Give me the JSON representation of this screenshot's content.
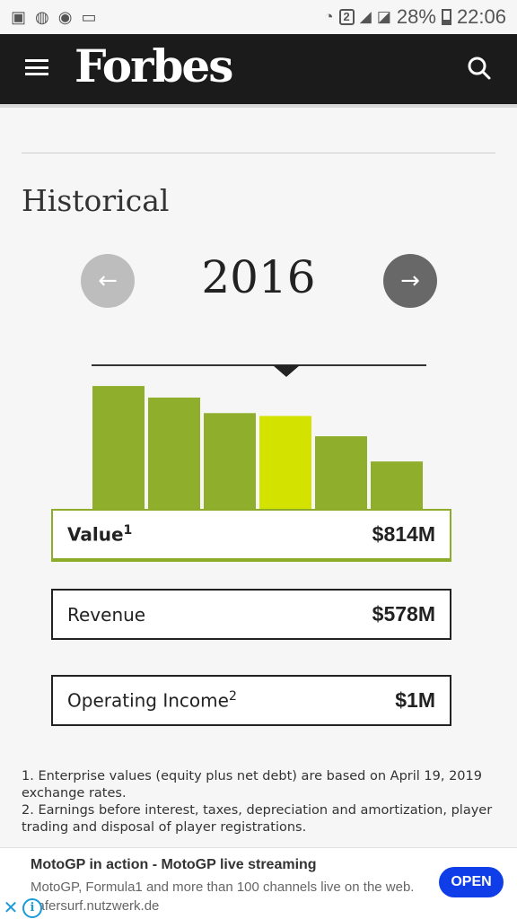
{
  "status_bar": {
    "left_icons": [
      "image-icon",
      "basketball-icon",
      "torrent-icon",
      "voicemail-icon"
    ],
    "sim_badge": "2",
    "battery": "28%",
    "time": "22:06"
  },
  "header": {
    "logo": "Forbes"
  },
  "section": {
    "title": "Historical",
    "year": "2016",
    "prev_label": "←",
    "next_label": "→"
  },
  "chart_data": {
    "type": "bar",
    "values": [
      127,
      115,
      99,
      96,
      75,
      49
    ],
    "selected_index": 3,
    "colors": {
      "bar": "#8fae2b",
      "selected": "#d4e200"
    }
  },
  "metrics": [
    {
      "label": "Value",
      "sup": "1",
      "value": "$814M",
      "active": true
    },
    {
      "label": "Revenue",
      "sup": "",
      "value": "$578M",
      "active": false
    },
    {
      "label": "Operating Income",
      "sup": "2",
      "value": "$1M",
      "active": false
    }
  ],
  "notes": {
    "note1": "1. Enterprise values (equity plus net debt) are based on April 19, 2019 exchange rates.",
    "note2": "2. Earnings before interest, taxes, depreciation and amortization, player trading and disposal of player registrations."
  },
  "ad": {
    "title": "MotoGP in action - MotoGP live streaming",
    "text": "MotoGP, Formula1 and more than 100 channels live on the web. safersurf.nutzwerk.de",
    "open_label": "OPEN",
    "close_label": "✕",
    "info_label": "i"
  }
}
